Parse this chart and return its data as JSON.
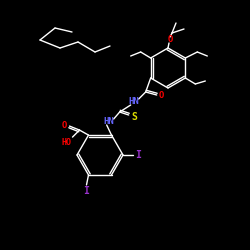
{
  "background_color": "#000000",
  "bond_color": "#ffffff",
  "atom_colors": {
    "O": "#ff0000",
    "N": "#6666ff",
    "S": "#dddd00",
    "I": "#9933cc",
    "HO": "#ff0000"
  },
  "figsize": [
    2.5,
    2.5
  ],
  "dpi": 100,
  "lw": 1.0
}
